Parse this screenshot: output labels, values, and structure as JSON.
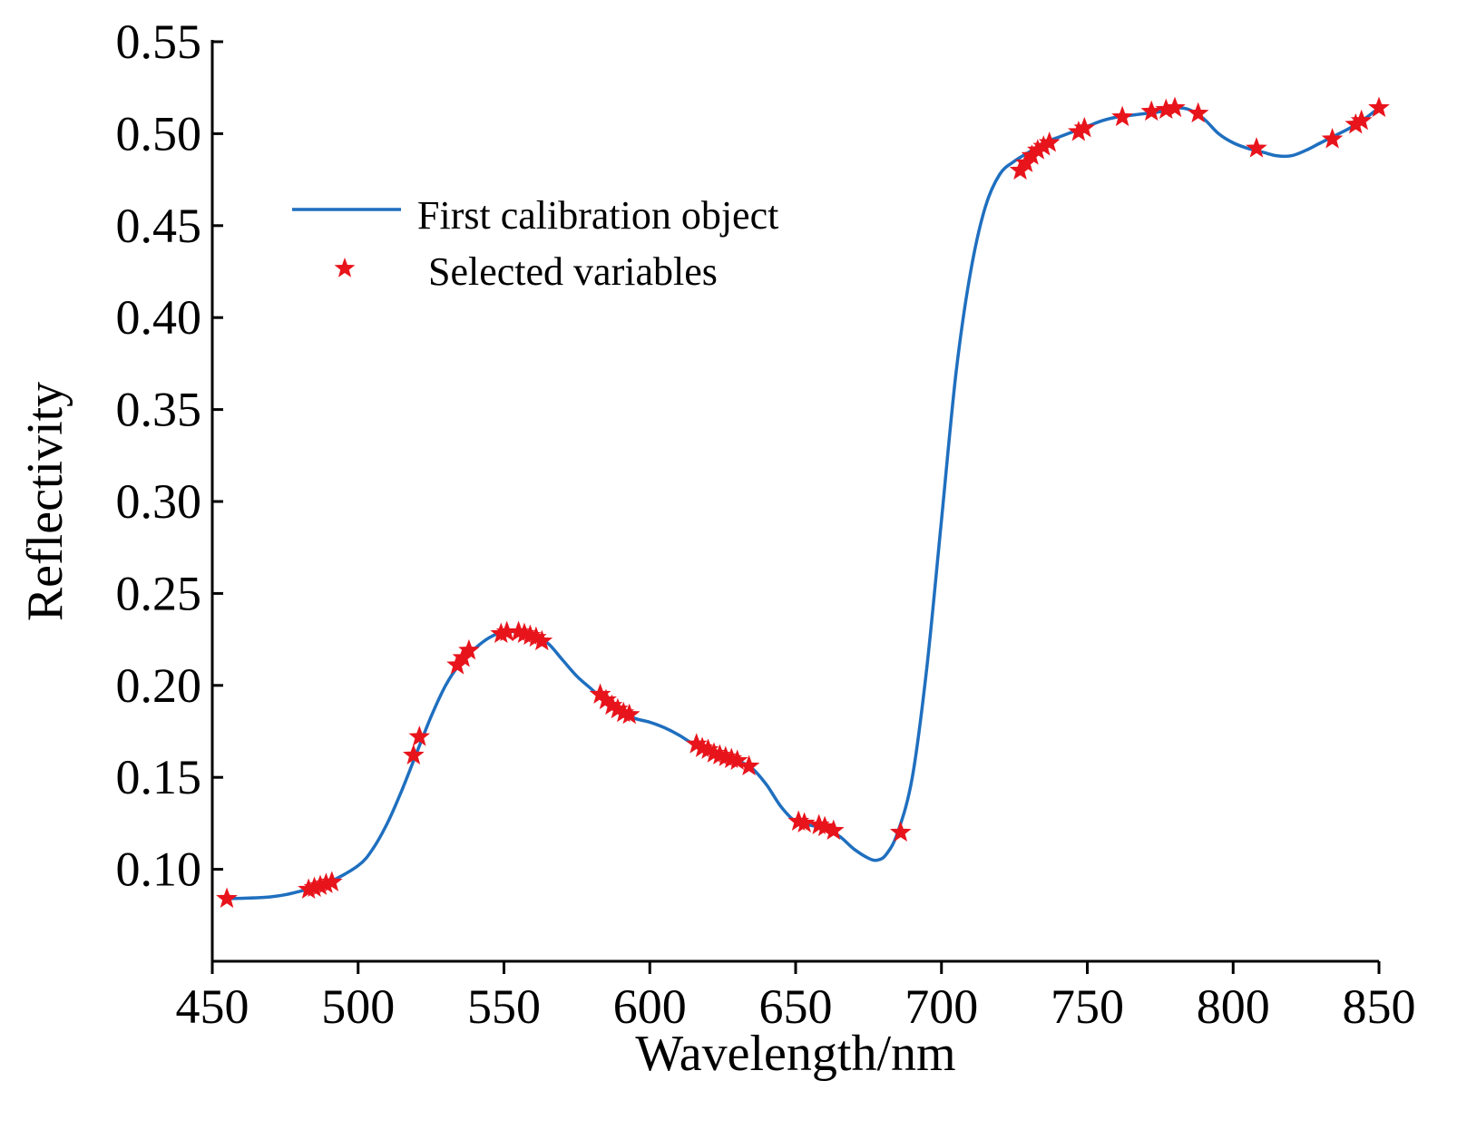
{
  "chart_data": {
    "type": "line",
    "title": "",
    "xlabel": "Wavelength/nm",
    "ylabel": "Reflectivity",
    "xlim": [
      450,
      850
    ],
    "ylim": [
      0.05,
      0.55
    ],
    "xticks": [
      450,
      500,
      550,
      600,
      650,
      700,
      750,
      800,
      850
    ],
    "xtick_labels": [
      "450",
      "500",
      "550",
      "600",
      "650",
      "700",
      "750",
      "800",
      "850"
    ],
    "yticks": [
      0.1,
      0.15,
      0.2,
      0.25,
      0.3,
      0.35,
      0.4,
      0.45,
      0.5,
      0.55
    ],
    "ytick_labels": [
      "0.10",
      "0.15",
      "0.20",
      "0.25",
      "0.30",
      "0.35",
      "0.40",
      "0.45",
      "0.50",
      "0.55"
    ],
    "grid": false,
    "legend_position": "upper-left",
    "series": [
      {
        "name": "First calibration object",
        "kind": "line",
        "color": "#1f6fbf",
        "x": [
          455,
          470,
          480,
          490,
          500,
          505,
          510,
          515,
          520,
          525,
          530,
          535,
          540,
          545,
          550,
          555,
          560,
          565,
          570,
          575,
          580,
          585,
          590,
          595,
          600,
          605,
          610,
          615,
          620,
          625,
          630,
          635,
          640,
          645,
          650,
          655,
          660,
          665,
          670,
          675,
          678,
          681,
          685,
          690,
          695,
          700,
          705,
          710,
          715,
          720,
          725,
          730,
          735,
          740,
          745,
          750,
          755,
          760,
          765,
          770,
          775,
          780,
          785,
          790,
          795,
          800,
          805,
          810,
          815,
          820,
          825,
          830,
          835,
          840,
          845,
          850
        ],
        "y": [
          0.084,
          0.085,
          0.088,
          0.093,
          0.102,
          0.111,
          0.125,
          0.143,
          0.163,
          0.183,
          0.2,
          0.212,
          0.22,
          0.226,
          0.229,
          0.229,
          0.227,
          0.223,
          0.214,
          0.205,
          0.198,
          0.191,
          0.186,
          0.182,
          0.18,
          0.177,
          0.173,
          0.168,
          0.164,
          0.161,
          0.159,
          0.155,
          0.146,
          0.134,
          0.126,
          0.124,
          0.122,
          0.118,
          0.111,
          0.106,
          0.105,
          0.108,
          0.12,
          0.15,
          0.21,
          0.29,
          0.37,
          0.425,
          0.46,
          0.478,
          0.485,
          0.49,
          0.495,
          0.498,
          0.501,
          0.504,
          0.507,
          0.509,
          0.51,
          0.511,
          0.512,
          0.514,
          0.513,
          0.508,
          0.5,
          0.495,
          0.492,
          0.49,
          0.488,
          0.488,
          0.491,
          0.495,
          0.499,
          0.503,
          0.508,
          0.514
        ]
      },
      {
        "name": "Selected variables",
        "kind": "scatter",
        "marker": "star",
        "color": "#e8141c",
        "x": [
          455,
          483,
          485,
          487,
          489,
          491,
          519,
          521,
          534,
          536,
          538,
          549,
          551,
          555,
          557,
          559,
          561,
          563,
          583,
          585,
          587,
          589,
          591,
          593,
          616,
          618,
          620,
          622,
          624,
          626,
          628,
          630,
          634,
          651,
          653,
          658,
          660,
          663,
          686,
          727,
          729,
          731,
          733,
          735,
          737,
          747,
          749,
          762,
          772,
          777,
          780,
          788,
          808,
          834,
          842,
          844,
          850
        ],
        "y": [
          0.084,
          0.089,
          0.09,
          0.091,
          0.092,
          0.093,
          0.162,
          0.172,
          0.211,
          0.215,
          0.219,
          0.228,
          0.229,
          0.229,
          0.228,
          0.227,
          0.226,
          0.224,
          0.195,
          0.192,
          0.189,
          0.187,
          0.185,
          0.184,
          0.168,
          0.166,
          0.165,
          0.163,
          0.162,
          0.161,
          0.16,
          0.159,
          0.156,
          0.126,
          0.125,
          0.124,
          0.123,
          0.121,
          0.12,
          0.48,
          0.484,
          0.488,
          0.491,
          0.493,
          0.495,
          0.501,
          0.503,
          0.509,
          0.512,
          0.513,
          0.514,
          0.511,
          0.492,
          0.497,
          0.505,
          0.507,
          0.514
        ]
      }
    ]
  }
}
